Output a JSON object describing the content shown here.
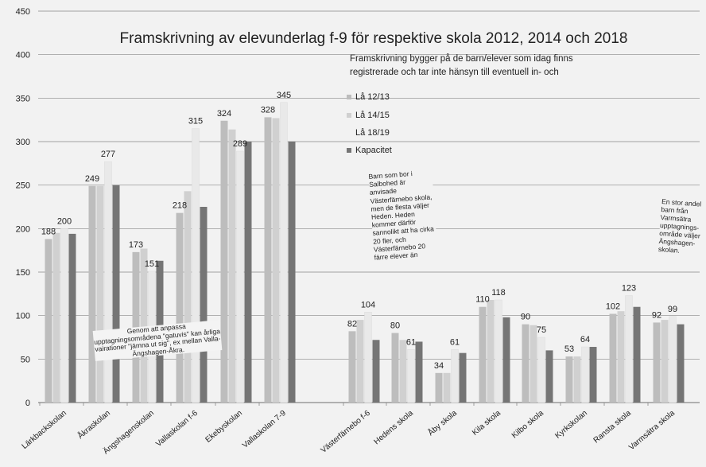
{
  "chart_data": {
    "type": "bar",
    "title": "Framskrivning av elevunderlag f-9 för respektive skola 2012, 2014 och 2018",
    "categories": [
      "Lärkbackskolan",
      "Åkraskolan",
      "Ängshagenskolan",
      "Vallaskolan f-6",
      "Ekebyskolan",
      "Vallaskolan 7-9",
      "Västerfärnebo f-6",
      "Hedens skola",
      "Åby skola",
      "Kila skola",
      "Kilbo skola",
      "Kyrkskolan",
      "Ransta skola",
      "Varmsätra skola"
    ],
    "series": [
      {
        "name": "Lå 12/13",
        "values": [
          188,
          249,
          173,
          218,
          324,
          328,
          82,
          80,
          34,
          110,
          90,
          53,
          102,
          92
        ]
      },
      {
        "name": "Lå 14/15",
        "values": [
          195,
          249,
          177,
          243,
          314,
          327,
          95,
          72,
          34,
          118,
          89,
          53,
          105,
          95
        ]
      },
      {
        "name": "Lå 18/19",
        "values": [
          200,
          277,
          151,
          315,
          289,
          345,
          104,
          61,
          61,
          118,
          75,
          64,
          123,
          99
        ]
      },
      {
        "name": "Kapacitet",
        "values": [
          194,
          250,
          163,
          225,
          300,
          300,
          72,
          70,
          57,
          98,
          60,
          64,
          110,
          90
        ]
      }
    ],
    "data_labels": [
      {
        "category": "Lärkbackskolan",
        "series": "Lå 12/13",
        "text": "188"
      },
      {
        "category": "Lärkbackskolan",
        "series": "Lå 18/19",
        "text": "200"
      },
      {
        "category": "Åkraskolan",
        "series": "Lå 12/13",
        "text": "249"
      },
      {
        "category": "Åkraskolan",
        "series": "Lå 18/19",
        "text": "277"
      },
      {
        "category": "Ängshagenskolan",
        "series": "Lå 12/13",
        "text": "173"
      },
      {
        "category": "Ängshagenskolan",
        "series": "Lå 18/19",
        "text": "151"
      },
      {
        "category": "Vallaskolan f-6",
        "series": "Lå 12/13",
        "text": "218"
      },
      {
        "category": "Vallaskolan f-6",
        "series": "Lå 18/19",
        "text": "315"
      },
      {
        "category": "Ekebyskolan",
        "series": "Lå 12/13",
        "text": "324"
      },
      {
        "category": "Ekebyskolan",
        "series": "Lå 18/19",
        "text": "289"
      },
      {
        "category": "Vallaskolan 7-9",
        "series": "Lå 12/13",
        "text": "328"
      },
      {
        "category": "Vallaskolan 7-9",
        "series": "Lå 18/19",
        "text": "345"
      },
      {
        "category": "Västerfärnebo f-6",
        "series": "Lå 12/13",
        "text": "82"
      },
      {
        "category": "Västerfärnebo f-6",
        "series": "Lå 18/19",
        "text": "104"
      },
      {
        "category": "Hedens skola",
        "series": "Lå 12/13",
        "text": "80"
      },
      {
        "category": "Hedens skola",
        "series": "Lå 18/19",
        "text": "61"
      },
      {
        "category": "Åby skola",
        "series": "Lå 12/13",
        "text": "34"
      },
      {
        "category": "Åby skola",
        "series": "Lå 18/19",
        "text": "61"
      },
      {
        "category": "Kila skola",
        "series": "Lå 12/13",
        "text": "110"
      },
      {
        "category": "Kila skola",
        "series": "Lå 18/19",
        "text": "118"
      },
      {
        "category": "Kilbo skola",
        "series": "Lå 12/13",
        "text": "90"
      },
      {
        "category": "Kilbo skola",
        "series": "Lå 18/19",
        "text": "75"
      },
      {
        "category": "Kyrkskolan",
        "series": "Lå 12/13",
        "text": "53"
      },
      {
        "category": "Kyrkskolan",
        "series": "Lå 18/19",
        "text": "64"
      },
      {
        "category": "Ransta skola",
        "series": "Lå 12/13",
        "text": "102"
      },
      {
        "category": "Ransta skola",
        "series": "Lå 18/19",
        "text": "123"
      },
      {
        "category": "Varmsätra skola",
        "series": "Lå 12/13",
        "text": "92"
      },
      {
        "category": "Varmsätra skola",
        "series": "Lå 18/19",
        "text": "99"
      }
    ],
    "ylim": [
      0,
      450
    ],
    "yticks": [
      0,
      50,
      100,
      150,
      200,
      250,
      300,
      350,
      400,
      450
    ],
    "grid": true,
    "legend_position": "right",
    "xlabel": "",
    "ylabel": ""
  },
  "annotations": {
    "top_note": "Framskrivning bygger på de barn/elever som idag finns registrerade och tar inte hänsyn till eventuell in- och",
    "note_left": "Genom att anpassa upptagningsområdena \"gatuvis\" kan årliga vairationer \"jämna ut sig\", ex mellan Valla-Ängshagen-Åkra.",
    "note_middle": "Barn som bor i Salbohed är anvisade Västerfärnebo skola, men de flesta väljer Heden. Heden kommer därför sannolikt att ha cirka 20 fler, och Västerfärnebo 20 färre elever än",
    "note_right": "En stor andel barn från Varmsätra upptagnings-område väljer Ängshagen-skolan."
  },
  "colors": {
    "s0": "#bdbdbd",
    "s1": "#d0d0d0",
    "s2": "#e9e9e9",
    "s3": "#757575",
    "grid": "#888888",
    "text": "#222222"
  }
}
